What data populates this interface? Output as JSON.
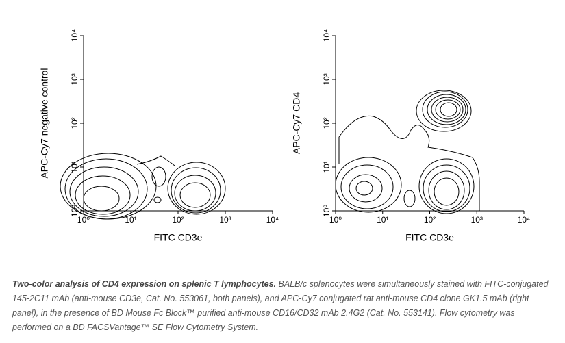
{
  "chart_data": [
    {
      "type": "contour",
      "x_label": "FITC CD3e",
      "y_label": "APC-Cy7 negative control",
      "log_scale": true,
      "xlim": [
        1,
        10000
      ],
      "ylim": [
        1,
        10000
      ],
      "xticks": [
        {
          "value": 1,
          "label": "10⁰"
        },
        {
          "value": 10,
          "label": "10¹"
        },
        {
          "value": 100,
          "label": "10²"
        },
        {
          "value": 1000,
          "label": "10³"
        },
        {
          "value": 10000,
          "label": "10⁴"
        }
      ],
      "yticks": [
        {
          "value": 1,
          "label": "10⁰"
        },
        {
          "value": 10,
          "label": "10¹"
        },
        {
          "value": 100,
          "label": "10²"
        },
        {
          "value": 1000,
          "label": "10³"
        },
        {
          "value": 10000,
          "label": "10⁴"
        }
      ]
    },
    {
      "type": "contour",
      "x_label": "FITC CD3e",
      "y_label": "APC-Cy7 CD4",
      "log_scale": true,
      "xlim": [
        1,
        10000
      ],
      "ylim": [
        1,
        10000
      ],
      "xticks": [
        {
          "value": 1,
          "label": "10⁰"
        },
        {
          "value": 10,
          "label": "10¹"
        },
        {
          "value": 100,
          "label": "10²"
        },
        {
          "value": 1000,
          "label": "10³"
        },
        {
          "value": 10000,
          "label": "10⁴"
        }
      ],
      "yticks": [
        {
          "value": 1,
          "label": "10⁰"
        },
        {
          "value": 10,
          "label": "10¹"
        },
        {
          "value": 100,
          "label": "10²"
        },
        {
          "value": 1000,
          "label": "10³"
        },
        {
          "value": 10000,
          "label": "10⁴"
        }
      ]
    }
  ],
  "caption": {
    "title": "Two-color analysis of CD4 expression on splenic T lymphocytes.",
    "text": "BALB/c splenocytes were simultaneously stained with FITC-conjugated 145-2C11 mAb (anti-mouse CD3e, Cat. No. 553061, both panels), and APC-Cy7 conjugated rat anti-mouse CD4 clone GK1.5 mAb (right panel), in the presence of BD Mouse Fc Block™ purified anti-mouse CD16/CD32 mAb 2.4G2 (Cat. No. 553141). Flow cytometry was performed on a BD FACSVantage™ SE Flow Cytometry System."
  }
}
